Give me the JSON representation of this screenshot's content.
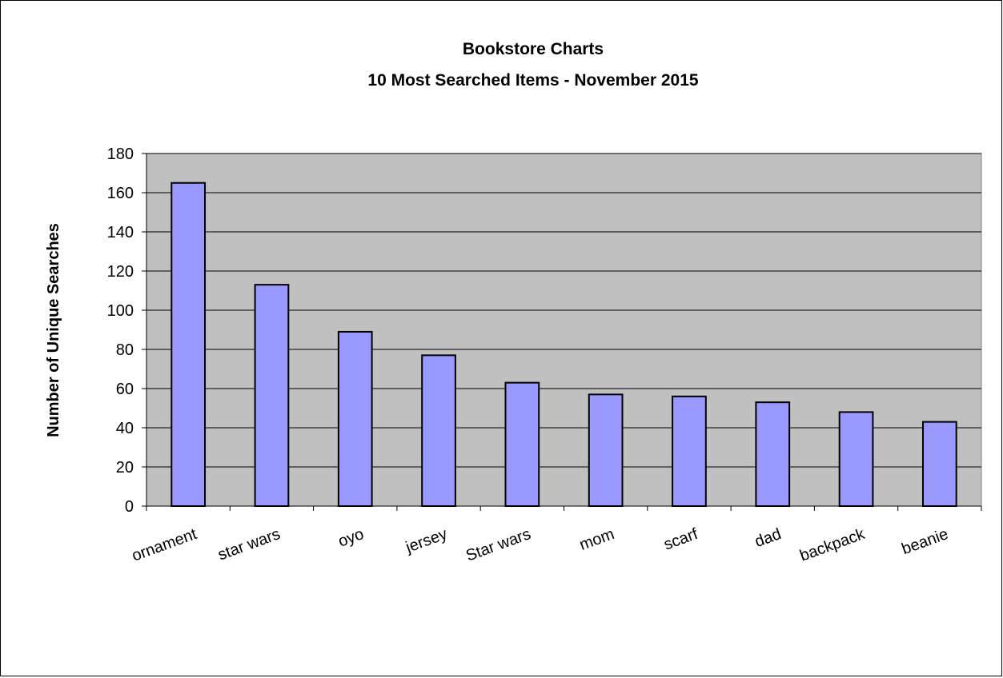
{
  "chart_data": {
    "type": "bar",
    "title": "Bookstore Charts",
    "subtitle": "10 Most Searched Items - November 2015",
    "xlabel": "",
    "ylabel": "Number of Unique Searches",
    "categories": [
      "ornament",
      "star wars",
      "oyo",
      "jersey",
      "Star wars",
      "mom",
      "scarf",
      "dad",
      "backpack",
      "beanie"
    ],
    "values": [
      165,
      113,
      89,
      77,
      63,
      57,
      56,
      53,
      48,
      43
    ],
    "ylim": [
      0,
      180
    ],
    "yticks": [
      "0",
      "20",
      "40",
      "60",
      "80",
      "100",
      "120",
      "140",
      "160",
      "180"
    ],
    "grid": true,
    "legend": "none",
    "colors": {
      "bar_fill": "#9999ff",
      "bar_stroke": "#000000",
      "plot_bg": "#c0c0c0",
      "gridline": "#000000"
    }
  }
}
